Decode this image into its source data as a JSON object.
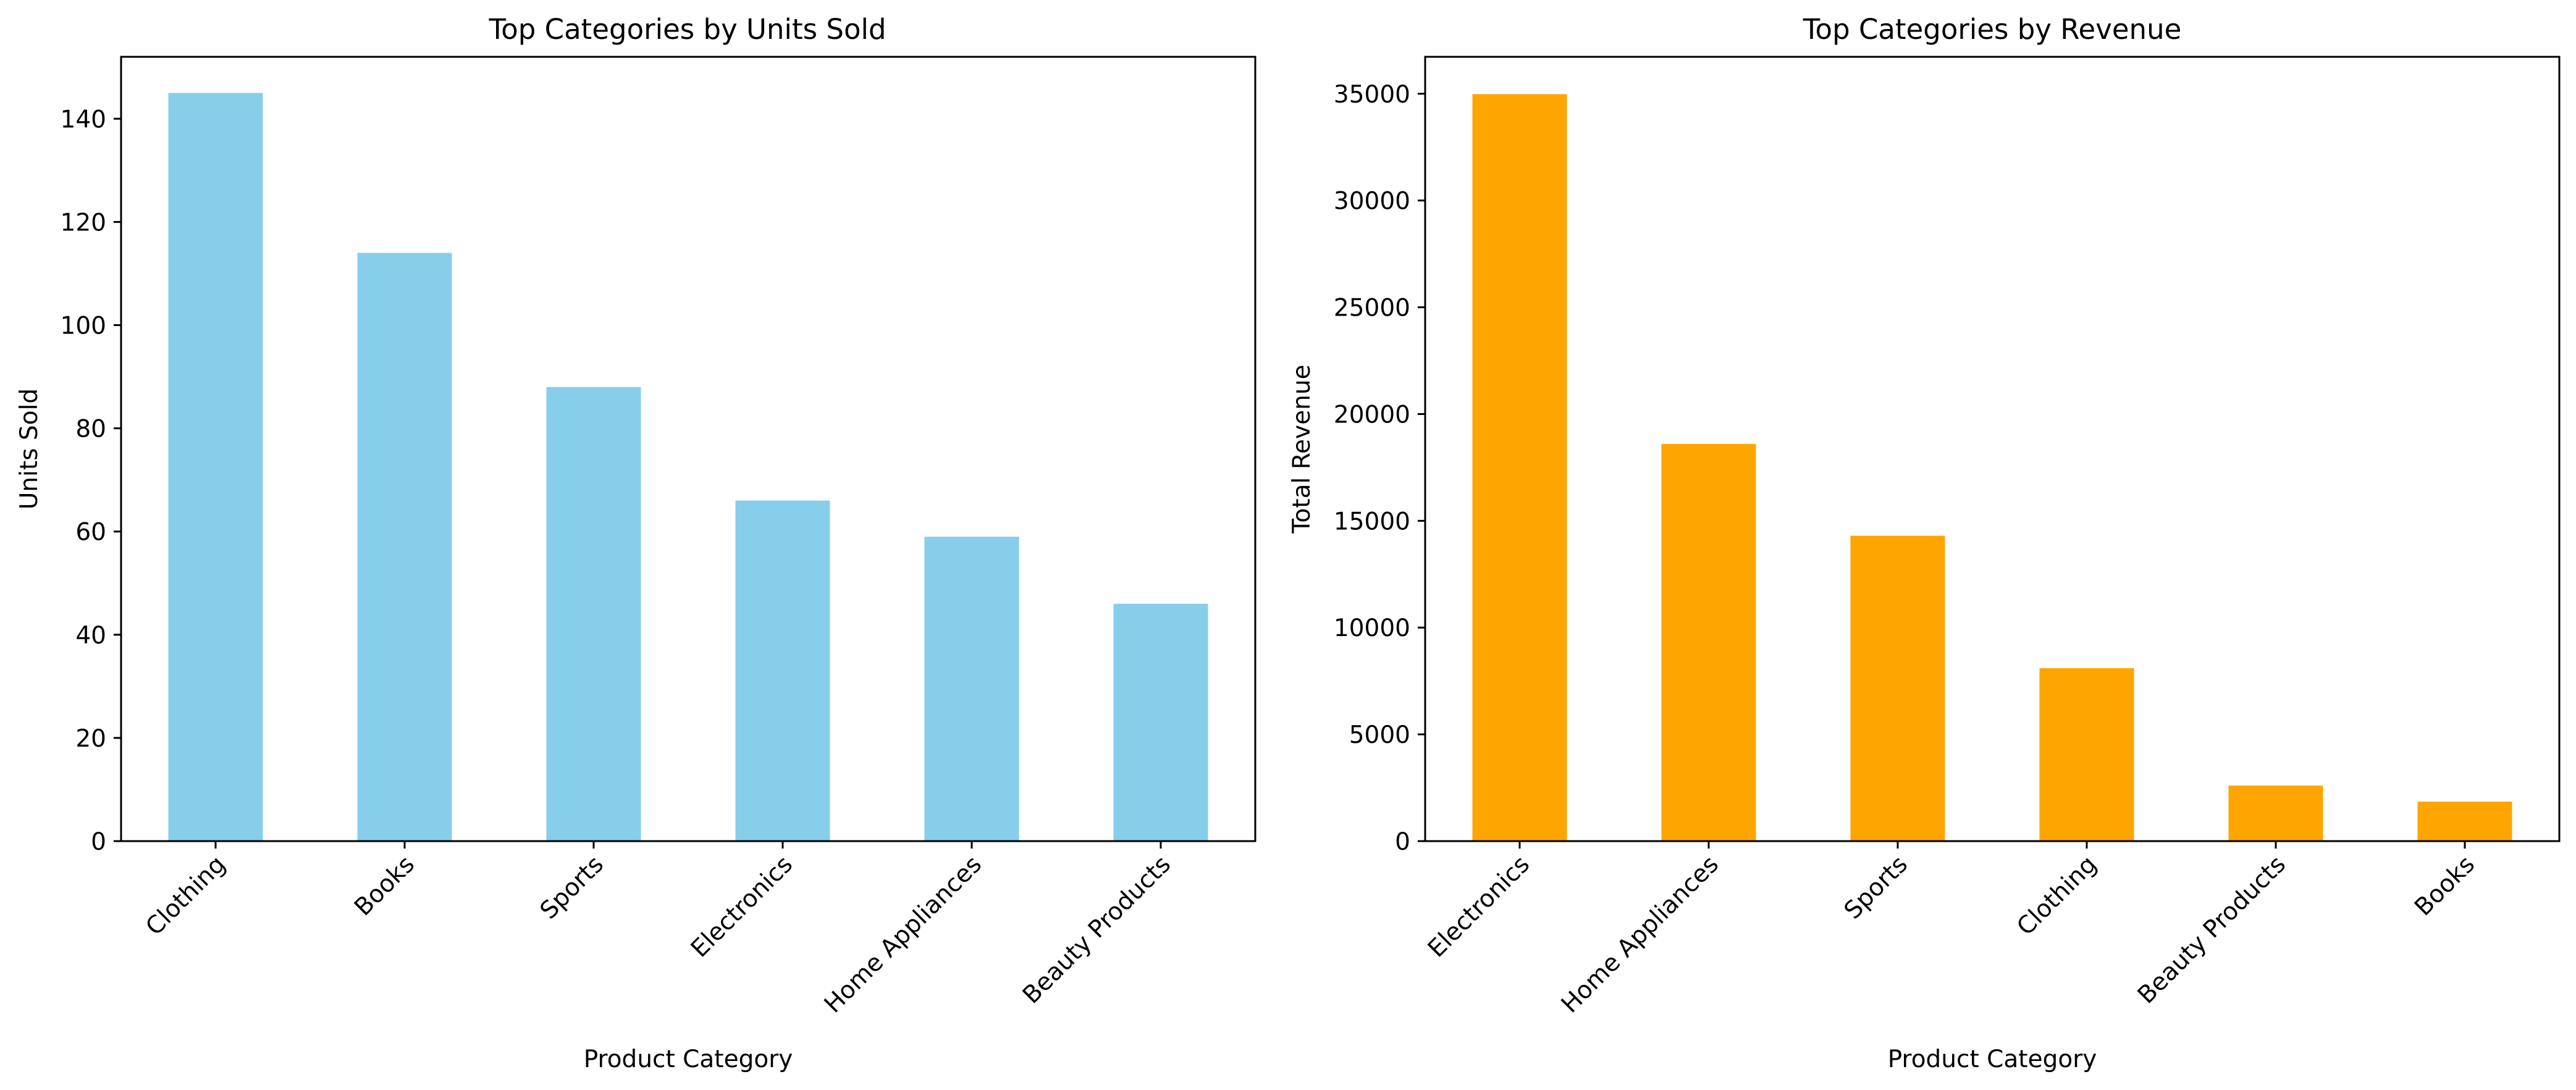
{
  "chart_data": [
    {
      "type": "bar",
      "title": "Top Categories by Units Sold",
      "xlabel": "Product Category",
      "ylabel": "Units Sold",
      "categories": [
        "Clothing",
        "Books",
        "Sports",
        "Electronics",
        "Home Appliances",
        "Beauty Products"
      ],
      "values": [
        145,
        114,
        88,
        66,
        59,
        46
      ],
      "ylim": [
        0,
        152
      ],
      "yticks": [
        0,
        20,
        40,
        60,
        80,
        100,
        120,
        140
      ],
      "color": "#87CEEB",
      "grid": false,
      "legend": "none"
    },
    {
      "type": "bar",
      "title": "Top Categories by Revenue",
      "xlabel": "Product Category",
      "ylabel": "Total Revenue",
      "categories": [
        "Electronics",
        "Home Appliances",
        "Sports",
        "Clothing",
        "Beauty Products",
        "Books"
      ],
      "values": [
        34980,
        18600,
        14300,
        8100,
        2600,
        1850
      ],
      "ylim": [
        0,
        36729
      ],
      "yticks": [
        0,
        5000,
        10000,
        15000,
        20000,
        25000,
        30000,
        35000
      ],
      "color": "#FFA500",
      "grid": false,
      "legend": "none"
    }
  ]
}
